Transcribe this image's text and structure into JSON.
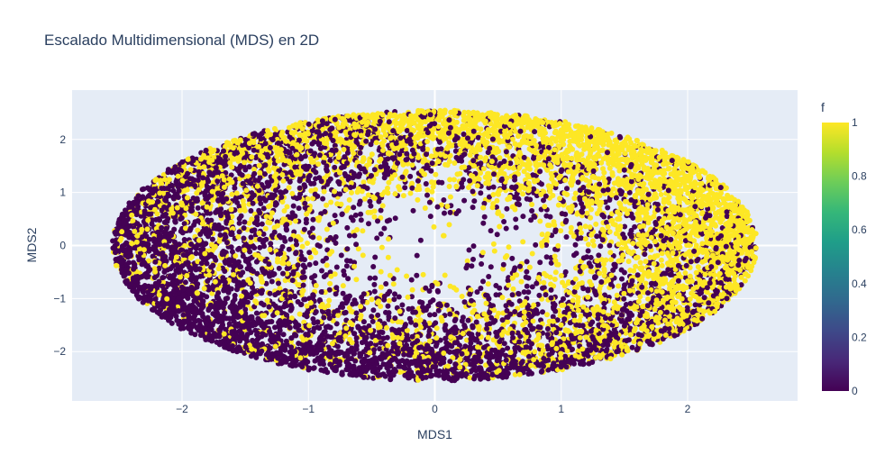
{
  "chart_data": {
    "type": "scatter",
    "title": "Escalado Multidimensional (MDS) en 2D",
    "xlabel": "MDS1",
    "ylabel": "MDS2",
    "xlim": [
      -2.87,
      2.87
    ],
    "ylim": [
      -2.93,
      2.93
    ],
    "x_ticks": [
      -2,
      -1,
      0,
      1,
      2
    ],
    "y_ticks": [
      -2,
      -1,
      0,
      1,
      2
    ],
    "x_tick_labels": [
      "−2",
      "−1",
      "0",
      "1",
      "2"
    ],
    "y_tick_labels": [
      "−2",
      "−1",
      "0",
      "1",
      "2"
    ],
    "grid": true,
    "plot_background": "#E5ECF6",
    "marker_colors": {
      "f_0": "#440154",
      "f_1": "#FDE725"
    },
    "point_cloud": {
      "shape": "ellipse",
      "center": [
        0.0,
        0.0
      ],
      "x_radius": 2.55,
      "y_radius": 2.55,
      "approx_points": 9000,
      "f_values": [
        0,
        1
      ],
      "note_pattern": "f=0 dominant near bottom/left rim, f=1 dominant near top/right rim"
    },
    "colorbar": {
      "title": "f",
      "range": [
        0,
        1
      ],
      "ticks": [
        0,
        0.2,
        0.4,
        0.6,
        0.8,
        1
      ],
      "tick_labels": [
        "0",
        "0.2",
        "0.4",
        "0.6",
        "0.8",
        "1"
      ],
      "colorscale": [
        "#440154",
        "#482878",
        "#3E4989",
        "#31688E",
        "#26828E",
        "#1F9E89",
        "#35B779",
        "#6DCD59",
        "#B4DE2C",
        "#FDE725"
      ],
      "placement": "right"
    }
  }
}
